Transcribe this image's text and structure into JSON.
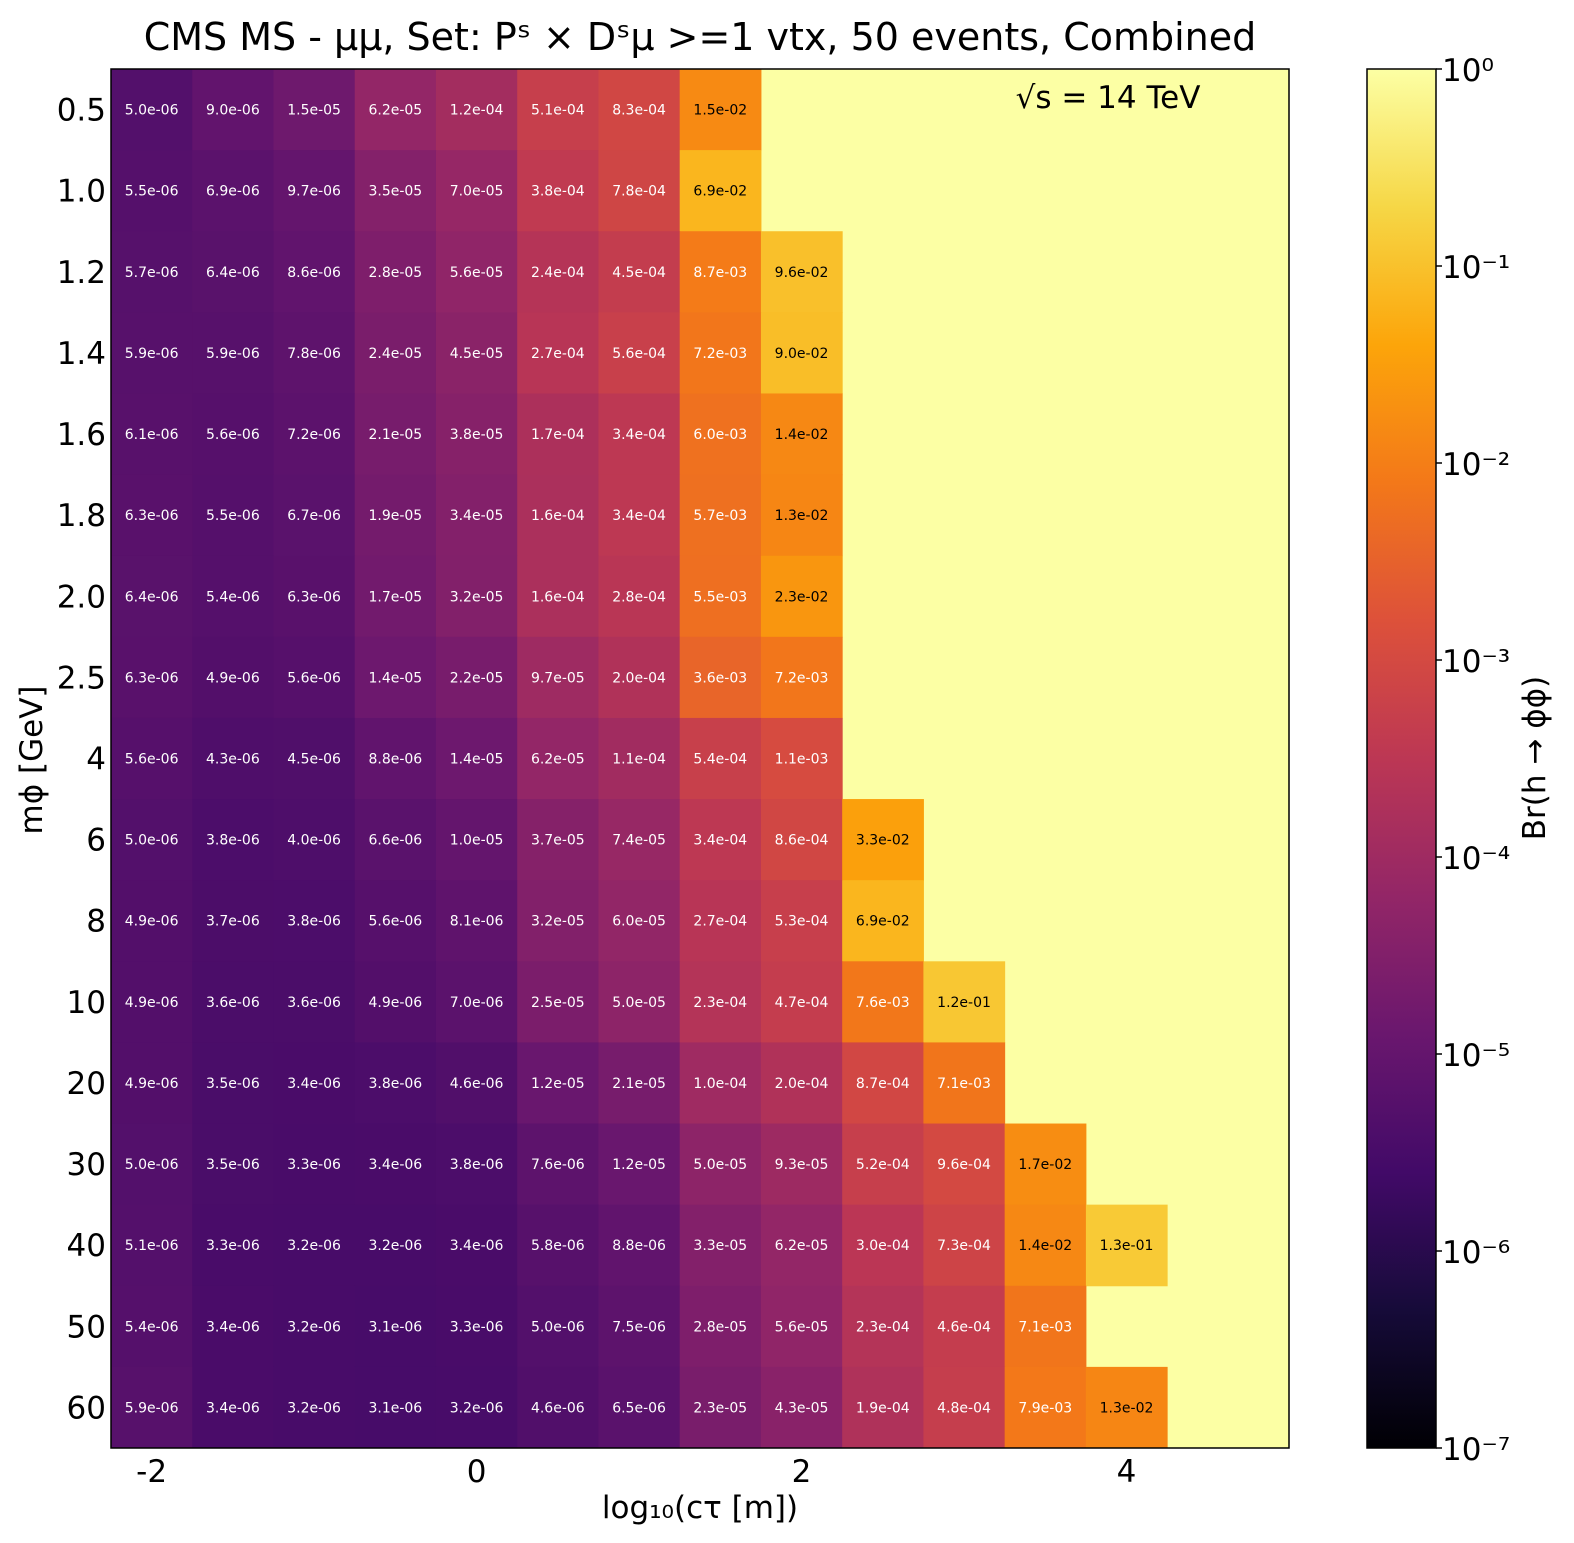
{
  "chart_data": {
    "type": "heatmap",
    "title": "CMS MS - μμ, Set: Pˢ × Dˢμ >=1 vtx, 50 events, Combined",
    "xlabel": "log₁₀(cτ [m])",
    "ylabel": "mϕ [GeV]",
    "colorbar_label": "Br(h → ϕϕ)",
    "annotation": "√s = 14 TeV",
    "colormap": "inferno",
    "color_scale": "log",
    "color_range": [
      1e-07,
      1
    ],
    "fill_value": 1,
    "x_ticks": [
      -2,
      0,
      2,
      4
    ],
    "x_tick_labels": [
      "-2",
      "0",
      "2",
      "4"
    ],
    "x_range": [
      -2.25,
      5.0
    ],
    "x_centers": [
      -2.0,
      -1.5,
      -1.0,
      -0.5,
      0.0,
      0.5,
      1.0,
      1.5,
      2.0,
      2.5,
      3.0,
      3.5,
      4.0
    ],
    "y_categories": [
      "0.5",
      "1.0",
      "1.2",
      "1.4",
      "1.6",
      "1.8",
      "2.0",
      "2.5",
      "4",
      "6",
      "8",
      "10",
      "20",
      "30",
      "40",
      "50",
      "60"
    ],
    "colorbar_ticks": [
      "10⁻⁷",
      "10⁻⁶",
      "10⁻⁵",
      "10⁻⁴",
      "10⁻³",
      "10⁻²",
      "10⁻¹",
      "10⁰"
    ],
    "labels": [
      [
        "5.0e-06",
        "9.0e-06",
        "1.5e-05",
        "6.2e-05",
        "1.2e-04",
        "5.1e-04",
        "8.3e-04",
        "1.5e-02"
      ],
      [
        "5.5e-06",
        "6.9e-06",
        "9.7e-06",
        "3.5e-05",
        "7.0e-05",
        "3.8e-04",
        "7.8e-04",
        "6.9e-02"
      ],
      [
        "5.7e-06",
        "6.4e-06",
        "8.6e-06",
        "2.8e-05",
        "5.6e-05",
        "2.4e-04",
        "4.5e-04",
        "8.7e-03",
        "9.6e-02"
      ],
      [
        "5.9e-06",
        "5.9e-06",
        "7.8e-06",
        "2.4e-05",
        "4.5e-05",
        "2.7e-04",
        "5.6e-04",
        "7.2e-03",
        "9.0e-02"
      ],
      [
        "6.1e-06",
        "5.6e-06",
        "7.2e-06",
        "2.1e-05",
        "3.8e-05",
        "1.7e-04",
        "3.4e-04",
        "6.0e-03",
        "1.4e-02"
      ],
      [
        "6.3e-06",
        "5.5e-06",
        "6.7e-06",
        "1.9e-05",
        "3.4e-05",
        "1.6e-04",
        "3.4e-04",
        "5.7e-03",
        "1.3e-02"
      ],
      [
        "6.4e-06",
        "5.4e-06",
        "6.3e-06",
        "1.7e-05",
        "3.2e-05",
        "1.6e-04",
        "2.8e-04",
        "5.5e-03",
        "2.3e-02"
      ],
      [
        "6.3e-06",
        "4.9e-06",
        "5.6e-06",
        "1.4e-05",
        "2.2e-05",
        "9.7e-05",
        "2.0e-04",
        "3.6e-03",
        "7.2e-03"
      ],
      [
        "5.6e-06",
        "4.3e-06",
        "4.5e-06",
        "8.8e-06",
        "1.4e-05",
        "6.2e-05",
        "1.1e-04",
        "5.4e-04",
        "1.1e-03"
      ],
      [
        "5.0e-06",
        "3.8e-06",
        "4.0e-06",
        "6.6e-06",
        "1.0e-05",
        "3.7e-05",
        "7.4e-05",
        "3.4e-04",
        "8.6e-04",
        "3.3e-02"
      ],
      [
        "4.9e-06",
        "3.7e-06",
        "3.8e-06",
        "5.6e-06",
        "8.1e-06",
        "3.2e-05",
        "6.0e-05",
        "2.7e-04",
        "5.3e-04",
        "6.9e-02"
      ],
      [
        "4.9e-06",
        "3.6e-06",
        "3.6e-06",
        "4.9e-06",
        "7.0e-06",
        "2.5e-05",
        "5.0e-05",
        "2.3e-04",
        "4.7e-04",
        "7.6e-03",
        "1.2e-01"
      ],
      [
        "4.9e-06",
        "3.5e-06",
        "3.4e-06",
        "3.8e-06",
        "4.6e-06",
        "1.2e-05",
        "2.1e-05",
        "1.0e-04",
        "2.0e-04",
        "8.7e-04",
        "7.1e-03"
      ],
      [
        "5.0e-06",
        "3.5e-06",
        "3.3e-06",
        "3.4e-06",
        "3.8e-06",
        "7.6e-06",
        "1.2e-05",
        "5.0e-05",
        "9.3e-05",
        "5.2e-04",
        "9.6e-04",
        "1.7e-02"
      ],
      [
        "5.1e-06",
        "3.3e-06",
        "3.2e-06",
        "3.2e-06",
        "3.4e-06",
        "5.8e-06",
        "8.8e-06",
        "3.3e-05",
        "6.2e-05",
        "3.0e-04",
        "7.3e-04",
        "1.4e-02",
        "1.3e-01"
      ],
      [
        "5.4e-06",
        "3.4e-06",
        "3.2e-06",
        "3.1e-06",
        "3.3e-06",
        "5.0e-06",
        "7.5e-06",
        "2.8e-05",
        "5.6e-05",
        "2.3e-04",
        "4.6e-04",
        "7.1e-03"
      ],
      [
        "5.9e-06",
        "3.4e-06",
        "3.2e-06",
        "3.1e-06",
        "3.2e-06",
        "4.6e-06",
        "6.5e-06",
        "2.3e-05",
        "4.3e-05",
        "1.9e-04",
        "4.8e-04",
        "7.9e-03",
        "1.3e-02"
      ]
    ]
  }
}
